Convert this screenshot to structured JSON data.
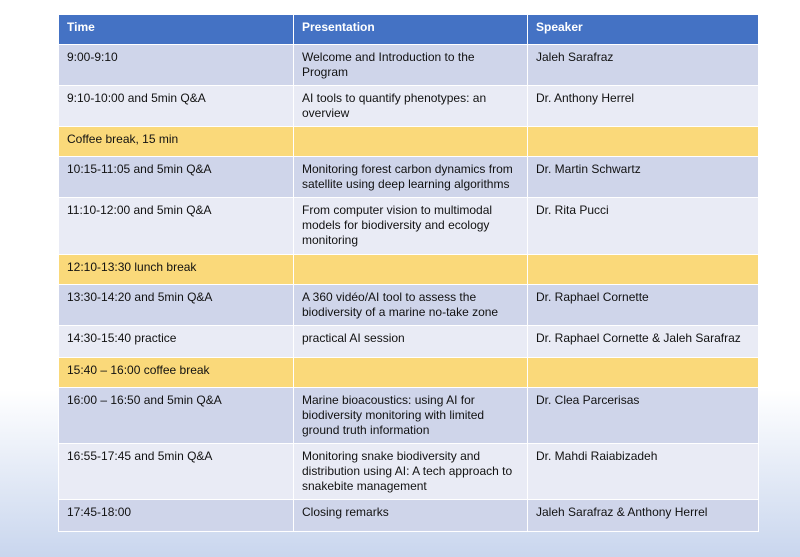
{
  "table": {
    "header": [
      "Time",
      "Presentation",
      "Speaker"
    ],
    "rows": [
      {
        "time": "9:00-9:10",
        "presentation": "Welcome and Introduction to the Program",
        "speaker": "Jaleh Sarafraz"
      },
      {
        "time": "9:10-10:00 and 5min Q&A",
        "presentation": "AI tools to quantify phenotypes: an overview",
        "speaker": "Dr. Anthony Herrel"
      },
      {
        "time": "Coffee break, 15 min"
      },
      {
        "time": "10:15-11:05 and 5min Q&A",
        "presentation": "Monitoring forest carbon dynamics from satellite using deep learning algorithms",
        "speaker": "Dr. Martin Schwartz"
      },
      {
        "time": "11:10-12:00 and 5min Q&A",
        "presentation": "From computer vision to multimodal models for biodiversity and ecology monitoring",
        "speaker": "Dr. Rita Pucci"
      },
      {
        "time": "12:10-13:30 lunch break"
      },
      {
        "time": "13:30-14:20 and 5min Q&A",
        "presentation": "A 360 vidéo/AI tool to assess the biodiversity of a marine no-take zone",
        "speaker": "Dr. Raphael Cornette"
      },
      {
        "time": "14:30-15:40 practice",
        "presentation": "practical AI session",
        "speaker": "Dr. Raphael Cornette & Jaleh Sarafraz"
      },
      {
        "time": "15:40 – 16:00 coffee break"
      },
      {
        "time": "16:00 – 16:50 and 5min Q&A",
        "presentation": "Marine bioacoustics: using AI for biodiversity monitoring with limited ground truth information",
        "speaker": "Dr. Clea Parcerisas"
      },
      {
        "time": "16:55-17:45 and 5min Q&A",
        "presentation": "Monitoring snake biodiversity and distribution using AI: A tech approach to snakebite management",
        "speaker": "Dr. Mahdi Raiabizadeh"
      },
      {
        "time": "17:45-18:00",
        "presentation": "Closing remarks",
        "speaker": "Jaleh Sarafraz & Anthony Herrel"
      }
    ]
  }
}
